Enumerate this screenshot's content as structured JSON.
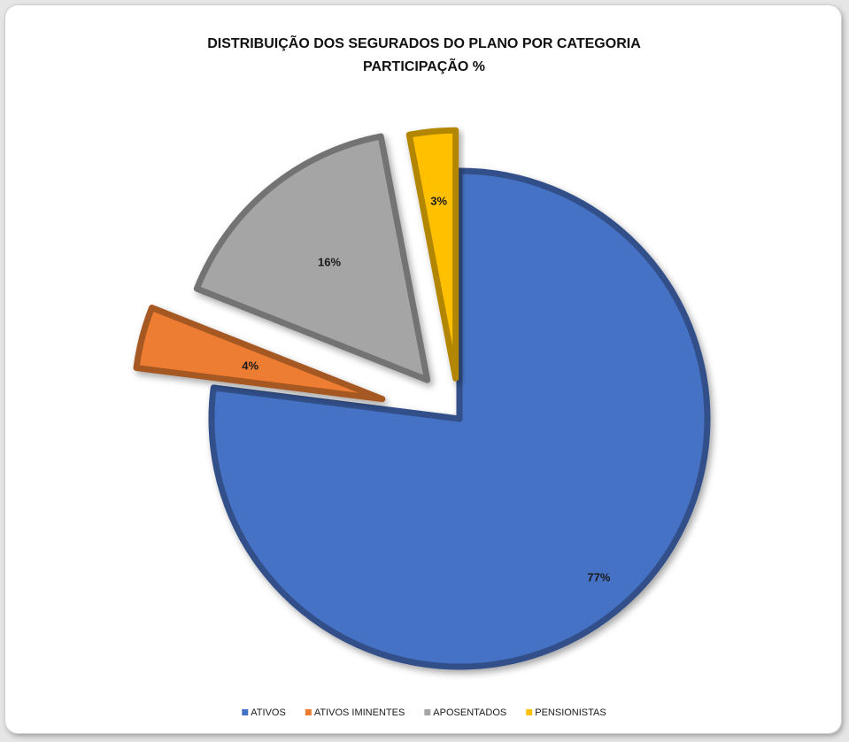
{
  "chart_data": {
    "type": "pie",
    "title": "DISTRIBUIÇÃO DOS SEGURADOS DO PLANO POR CATEGORIA",
    "subtitle": "PARTICIPAÇÃO %",
    "legend_position": "bottom",
    "series": [
      {
        "name": "ATIVOS",
        "value": 77,
        "label": "77%",
        "color": "#4472c4"
      },
      {
        "name": "ATIVOS IMINENTES",
        "value": 4,
        "label": "4%",
        "color": "#ed7d31"
      },
      {
        "name": "APOSENTADOS",
        "value": 16,
        "label": "16%",
        "color": "#a5a5a5"
      },
      {
        "name": "PENSIONISTAS",
        "value": 3,
        "label": "3%",
        "color": "#ffc000"
      }
    ]
  }
}
